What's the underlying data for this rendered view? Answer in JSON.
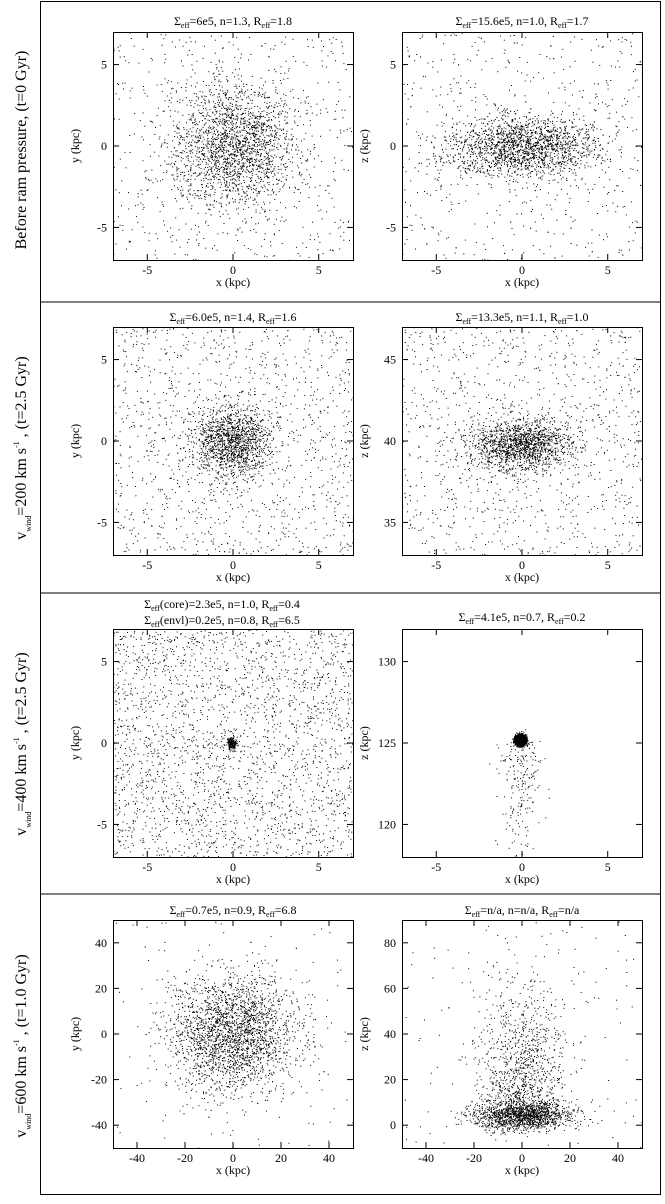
{
  "rows": [
    {
      "label": "Before ram pressure, (t=0 Gyr)"
    },
    {
      "label_v": "v",
      "label_sub": "wind",
      "label_rest": "=200 km s",
      "label_sup": "-1",
      "label_tail": " , (t=2.5 Gyr)"
    },
    {
      "label_v": "v",
      "label_sub": "wind",
      "label_rest": "=400 km s",
      "label_sup": "-1",
      "label_tail": " , (t=2.5 Gyr)"
    },
    {
      "label_v": "v",
      "label_sub": "wind",
      "label_rest": "=600 km s",
      "label_sup": "-1",
      "label_tail": " , (t=1.0 Gyr)"
    }
  ],
  "titles": {
    "p0": {
      "a": "Σ",
      "a_sub": "eff",
      "b": "=6e5, n=1.3, R",
      "b_sub": "eff",
      "c": "=1.8"
    },
    "p1": {
      "a": "Σ",
      "a_sub": "eff",
      "b": "=15.6e5, n=1.0, R",
      "b_sub": "eff",
      "c": "=1.7"
    },
    "p2": {
      "a": "Σ",
      "a_sub": "eff",
      "b": "=6.0e5, n=1.4, R",
      "b_sub": "eff",
      "c": "=1.6"
    },
    "p3": {
      "a": "Σ",
      "a_sub": "eff",
      "b": "=13.3e5, n=1.1, R",
      "b_sub": "eff",
      "c": "=1.0"
    },
    "p4a": {
      "a": "Σ",
      "a_sub": "eff",
      "b": "(core)=2.3e5, n=1.0, R",
      "b_sub": "eff",
      "c": "=0.4"
    },
    "p4b": {
      "a": "Σ",
      "a_sub": "eff",
      "b": "(envl)=0.2e5, n=0.8, R",
      "b_sub": "eff",
      "c": "=6.5"
    },
    "p5": {
      "a": "Σ",
      "a_sub": "eff",
      "b": "=4.1e5, n=0.7, R",
      "b_sub": "eff",
      "c": "=0.2"
    },
    "p6": {
      "a": "Σ",
      "a_sub": "eff",
      "b": "=0.7e5, n=0.9, R",
      "b_sub": "eff",
      "c": "=6.8"
    },
    "p7": {
      "a": "Σ",
      "a_sub": "eff",
      "b": "=n/a, n=n/a, R",
      "b_sub": "eff",
      "c": "=n/a"
    }
  },
  "chart_data": [
    {
      "type": "scatter",
      "xlabel": "x (kpc)",
      "ylabel": "y (kpc)",
      "xlim": [
        -7,
        7
      ],
      "ylim": [
        -7,
        7
      ],
      "xticks": [
        -5,
        0,
        5
      ],
      "yticks": [
        -5,
        0,
        5
      ],
      "distribution": {
        "cx": 0,
        "cy": 0,
        "sx": 1.8,
        "sy": 1.8,
        "uniform_fraction": 0.22
      }
    },
    {
      "type": "scatter",
      "xlabel": "x (kpc)",
      "ylabel": "z (kpc)",
      "xlim": [
        -7,
        7
      ],
      "ylim": [
        -7,
        7
      ],
      "xticks": [
        -5,
        0,
        5
      ],
      "yticks": [
        -5,
        0,
        5
      ],
      "distribution": {
        "cx": 0,
        "cy": 0,
        "sx": 2.2,
        "sy": 0.9,
        "uniform_fraction": 0.22
      }
    },
    {
      "type": "scatter",
      "xlabel": "x (kpc)",
      "ylabel": "y (kpc)",
      "xlim": [
        -7,
        7
      ],
      "ylim": [
        -7,
        7
      ],
      "xticks": [
        -5,
        0,
        5
      ],
      "yticks": [
        -5,
        0,
        5
      ],
      "distribution": {
        "cx": 0,
        "cy": 0,
        "sx": 1.1,
        "sy": 1.1,
        "uniform_fraction": 0.45
      }
    },
    {
      "type": "scatter",
      "xlabel": "x (kpc)",
      "ylabel": "z (kpc)",
      "xlim": [
        -7,
        7
      ],
      "ylim": [
        33,
        47
      ],
      "xticks": [
        -5,
        0,
        5
      ],
      "yticks": [
        35,
        40,
        45
      ],
      "distribution": {
        "cx": 0,
        "cy": 39.8,
        "sx": 1.4,
        "sy": 0.8,
        "uniform_fraction": 0.4
      }
    },
    {
      "type": "scatter",
      "xlabel": "x (kpc)",
      "ylabel": "y (kpc)",
      "xlim": [
        -7,
        7
      ],
      "ylim": [
        -7,
        7
      ],
      "xticks": [
        -5,
        0,
        5
      ],
      "yticks": [
        -5,
        0,
        5
      ],
      "distribution": {
        "cx": -0.1,
        "cy": 0,
        "sx": 0.12,
        "sy": 0.2,
        "uniform_fraction": 0.93
      }
    },
    {
      "type": "scatter",
      "xlabel": "x (kpc)",
      "ylabel": "z (kpc)",
      "xlim": [
        -7,
        7
      ],
      "ylim": [
        118,
        132
      ],
      "xticks": [
        -5,
        0,
        5
      ],
      "yticks": [
        120,
        125,
        130
      ],
      "distribution": {
        "cx": -0.1,
        "cy": 125.2,
        "sx": 0.15,
        "sy": 0.15,
        "uniform_fraction": 0.0,
        "tail_below": true
      }
    },
    {
      "type": "scatter",
      "xlabel": "x (kpc)",
      "ylabel": "y (kpc)",
      "xlim": [
        -50,
        50
      ],
      "ylim": [
        -50,
        50
      ],
      "xticks": [
        -40,
        -20,
        0,
        20,
        40
      ],
      "yticks": [
        -40,
        -20,
        0,
        20,
        40
      ],
      "distribution": {
        "cx": 0,
        "cy": 0,
        "sx": 13,
        "sy": 13,
        "uniform_fraction": 0.04
      }
    },
    {
      "type": "scatter",
      "xlabel": "x (kpc)",
      "ylabel": "z (kpc)",
      "xlim": [
        -50,
        50
      ],
      "ylim": [
        -10,
        90
      ],
      "xticks": [
        -40,
        -20,
        0,
        20,
        40
      ],
      "yticks": [
        0,
        20,
        40,
        60,
        80
      ],
      "distribution": {
        "cx": 0,
        "cy": 4,
        "sx": 10,
        "sy": 3,
        "uniform_fraction": 0.04,
        "plume": true
      }
    }
  ]
}
